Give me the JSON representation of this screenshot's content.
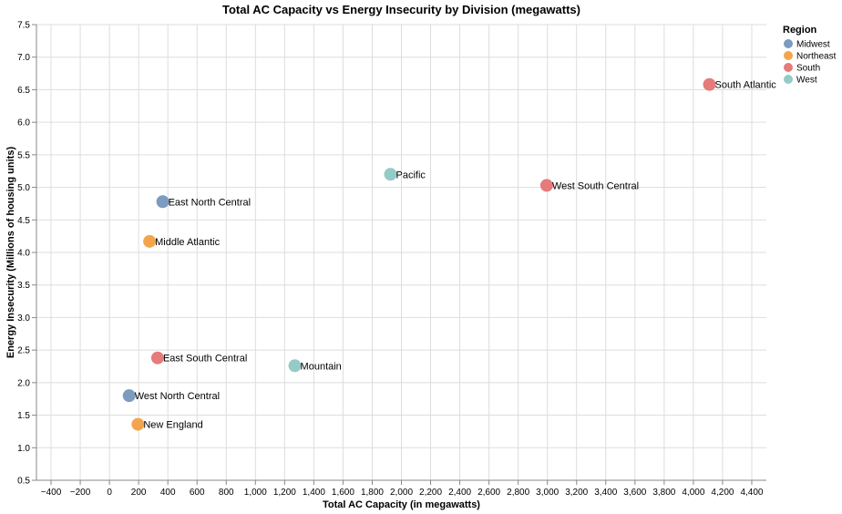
{
  "chart_data": {
    "type": "scatter",
    "title": "Total AC Capacity vs Energy Insecurity by Division (megawatts)",
    "xlabel": "Total AC Capacity (in megawatts)",
    "ylabel": "Energy Insecurity (Millions of housing units)",
    "xlim": [
      -500,
      4500
    ],
    "ylim": [
      0.5,
      7.5
    ],
    "x_ticks": [
      -400,
      -200,
      0,
      200,
      400,
      600,
      800,
      1000,
      1200,
      1400,
      1600,
      1800,
      2000,
      2200,
      2400,
      2600,
      2800,
      3000,
      3200,
      3400,
      3600,
      3800,
      4000,
      4200,
      4400
    ],
    "x_tick_labels": [
      "−400",
      "−200",
      "0",
      "200",
      "400",
      "600",
      "800",
      "1,000",
      "1,200",
      "1,400",
      "1,600",
      "1,800",
      "2,000",
      "2,200",
      "2,400",
      "2,600",
      "2,800",
      "3,000",
      "3,200",
      "3,400",
      "3,600",
      "3,800",
      "4,000",
      "4,200",
      "4,400"
    ],
    "y_ticks": [
      0.5,
      1.0,
      1.5,
      2.0,
      2.5,
      3.0,
      3.5,
      4.0,
      4.5,
      5.0,
      5.5,
      6.0,
      6.5,
      7.0,
      7.5
    ],
    "y_tick_labels": [
      "0.5",
      "1.0",
      "1.5",
      "2.0",
      "2.5",
      "3.0",
      "3.5",
      "4.0",
      "4.5",
      "5.0",
      "5.5",
      "6.0",
      "6.5",
      "7.0",
      "7.5"
    ],
    "grid": true,
    "legend": {
      "title": "Region",
      "placement": "right",
      "entries": [
        {
          "name": "Midwest",
          "color": "#7b9bbf"
        },
        {
          "name": "Northeast",
          "color": "#f3a54e"
        },
        {
          "name": "South",
          "color": "#e57b7b"
        },
        {
          "name": "West",
          "color": "#94cbc6"
        }
      ]
    },
    "points": [
      {
        "label": "South Atlantic",
        "region": "South",
        "x": 4110,
        "y": 6.58
      },
      {
        "label": "West South Central",
        "region": "South",
        "x": 2995,
        "y": 5.03
      },
      {
        "label": "Pacific",
        "region": "West",
        "x": 1925,
        "y": 5.2
      },
      {
        "label": "East North Central",
        "region": "Midwest",
        "x": 365,
        "y": 4.78
      },
      {
        "label": "Middle Atlantic",
        "region": "Northeast",
        "x": 275,
        "y": 4.17
      },
      {
        "label": "East South Central",
        "region": "South",
        "x": 330,
        "y": 2.38
      },
      {
        "label": "Mountain",
        "region": "West",
        "x": 1270,
        "y": 2.26
      },
      {
        "label": "West North Central",
        "region": "Midwest",
        "x": 135,
        "y": 1.8
      },
      {
        "label": "New England",
        "region": "Northeast",
        "x": 195,
        "y": 1.36
      }
    ]
  }
}
